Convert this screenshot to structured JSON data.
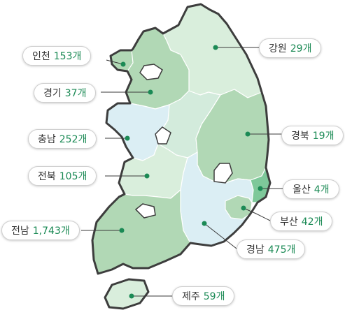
{
  "colors": {
    "outline": "#3d3d3d",
    "dot": "#1b8a55",
    "count_text": "#1b8a55",
    "region_light_green": "#d9eedc",
    "region_mid_green": "#b1d8b5",
    "region_pale_blue": "#dbeef4",
    "region_teal_green": "#7ec89a"
  },
  "regions": {
    "incheon": {
      "name": "인천",
      "count": "153개"
    },
    "gyeonggi": {
      "name": "경기",
      "count": "37개"
    },
    "chungnam": {
      "name": "충남",
      "count": "252개"
    },
    "jeonbuk": {
      "name": "전북",
      "count": "105개"
    },
    "jeonnam": {
      "name": "전남",
      "count": "1,743개"
    },
    "gangwon": {
      "name": "강원",
      "count": "29개"
    },
    "gyeongbuk": {
      "name": "경북",
      "count": "19개"
    },
    "ulsan": {
      "name": "울산",
      "count": "4개"
    },
    "busan": {
      "name": "부산",
      "count": "42개"
    },
    "gyeongnam": {
      "name": "경남",
      "count": "475개"
    },
    "jeju": {
      "name": "제주",
      "count": "59개"
    }
  }
}
